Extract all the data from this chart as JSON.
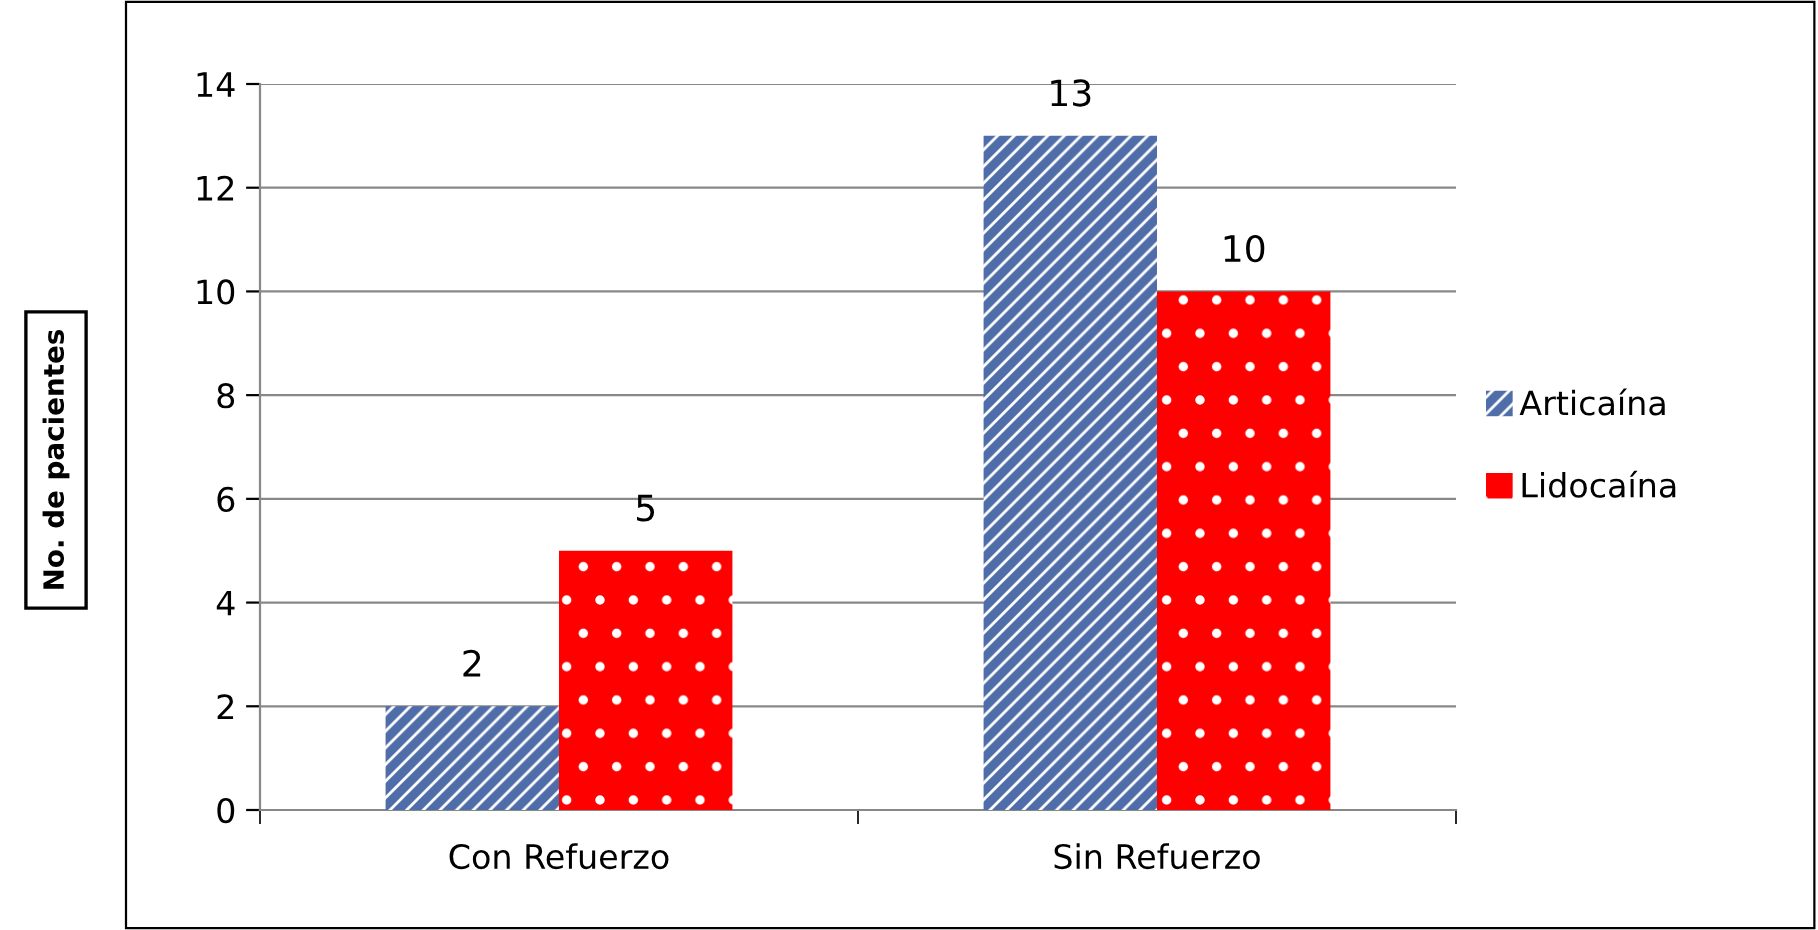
{
  "chart_data": {
    "type": "bar",
    "ylabel": "No. de pacientes",
    "categories": [
      "Con Refuerzo",
      "Sin Refuerzo"
    ],
    "series": [
      {
        "name": "Articaína",
        "color": "#4f6da8",
        "values": [
          2,
          13
        ]
      },
      {
        "name": "Lidocaína",
        "color": "#ff0000",
        "values": [
          5,
          10
        ]
      }
    ],
    "ylim": [
      0,
      14
    ],
    "yticks": [
      0,
      2,
      4,
      6,
      8,
      10,
      12,
      14
    ],
    "grid": "y",
    "legend": "right",
    "data_labels": true
  }
}
